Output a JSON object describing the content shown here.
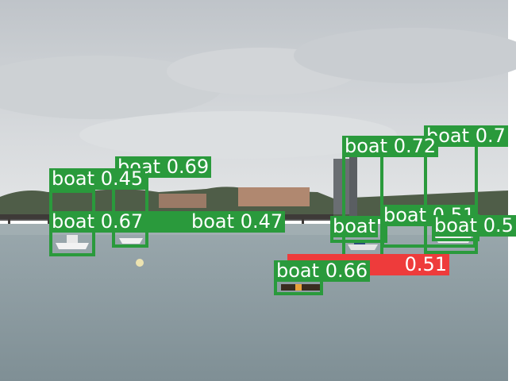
{
  "image": {
    "description_colors": {
      "sky_top": "#c4c8cc",
      "sky_bottom": "#dfe2e4",
      "sea": "#8c9aa0",
      "treeline": "#4a5a44",
      "box_green": "#2a9a3c",
      "box_red": "#ee3b3b"
    }
  },
  "detections": [
    {
      "class": "boat",
      "score": "0.69"
    },
    {
      "class": "boat",
      "score": "0.45"
    },
    {
      "class": "boat",
      "score": "0.67"
    },
    {
      "class": "boat",
      "score": "0.47"
    },
    {
      "class": "boat",
      "score": "0.72"
    },
    {
      "class": "boat",
      "score": "0.7"
    },
    {
      "class": "boat",
      "score": "0.51"
    },
    {
      "class": "boat",
      "score": "0.5"
    },
    {
      "class": "boat",
      "score": "0.51",
      "color": "red"
    },
    {
      "class": "boat",
      "score": "0.66"
    }
  ]
}
